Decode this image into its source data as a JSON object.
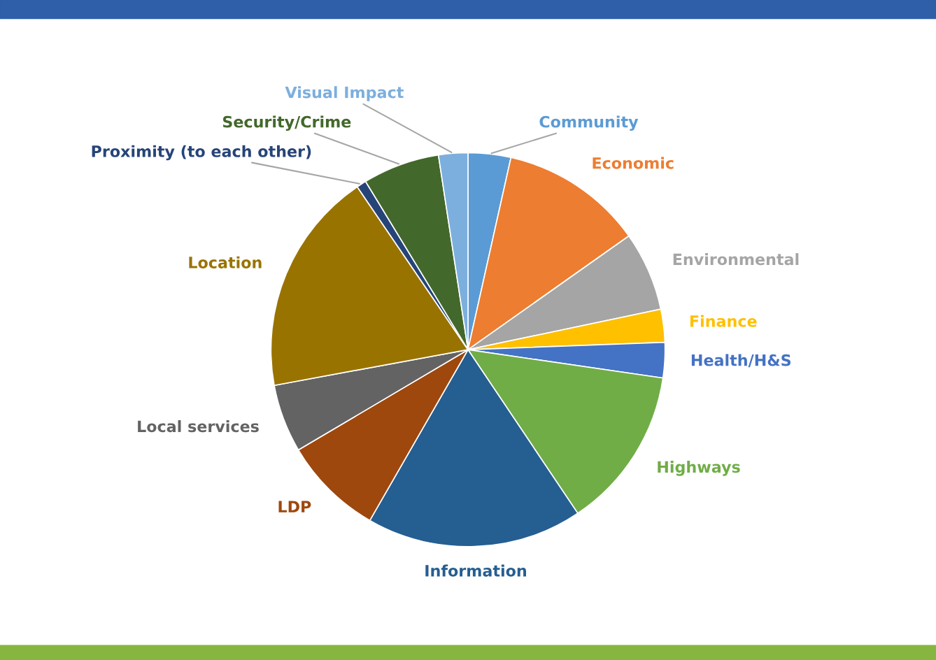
{
  "chart_data": {
    "type": "pie",
    "categories": [
      "Community",
      "Economic",
      "Environmental",
      "Finance",
      "Health/H&S",
      "Highways",
      "Information",
      "LDP",
      "Local services",
      "Location",
      "Proximity (to each other)",
      "Security/Crime",
      "Visual Impact"
    ],
    "values": [
      3.5,
      11.7,
      6.5,
      2.7,
      2.9,
      13.3,
      17.7,
      8.2,
      5.6,
      18.4,
      0.8,
      6.3,
      2.4
    ],
    "colors": [
      "#5b9bd5",
      "#ed7d31",
      "#a5a5a5",
      "#ffc000",
      "#4472c4",
      "#70ad47",
      "#255e91",
      "#9e480e",
      "#636363",
      "#997300",
      "#264478",
      "#43682b",
      "#7cafdd"
    ],
    "legend": false
  }
}
